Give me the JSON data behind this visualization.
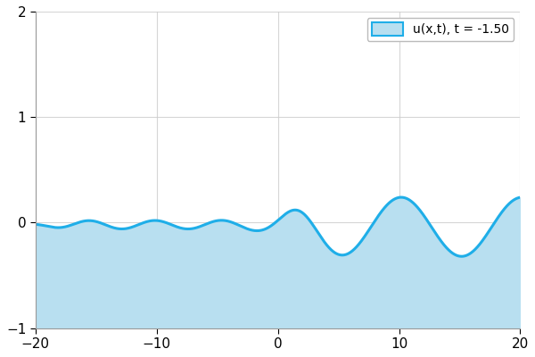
{
  "xlim": [
    -20,
    20
  ],
  "ylim": [
    -1,
    2
  ],
  "xticks": [
    -20,
    -10,
    0,
    10,
    20
  ],
  "yticks": [
    -1,
    0,
    1,
    2
  ],
  "line_color": "#1faee8",
  "fill_color": "#b8dff0",
  "fill_alpha": 1.0,
  "legend_label": "u(x,t), t = -1.50",
  "grid_color": "#cccccc",
  "background_color": "#ffffff",
  "t": -1.5,
  "figsize": [
    6.0,
    4.0
  ],
  "dpi": 100
}
